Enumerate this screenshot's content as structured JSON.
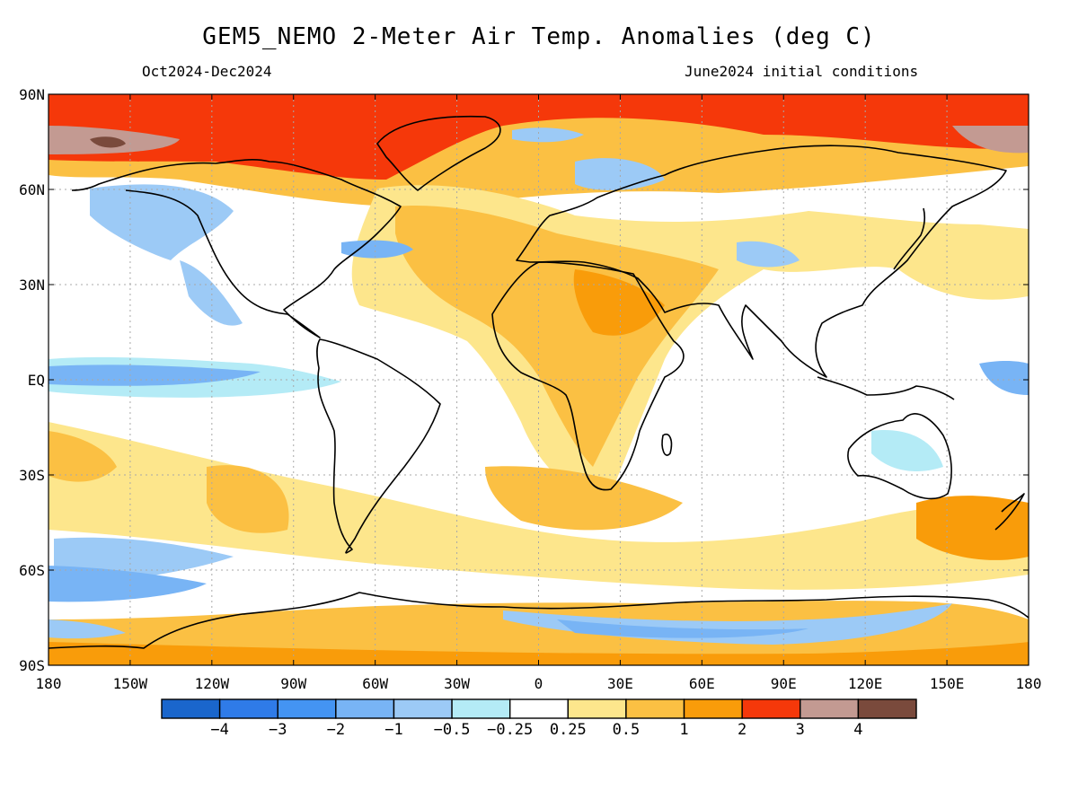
{
  "title": "GEM5_NEMO 2-Meter Air Temp. Anomalies (deg C)",
  "subtitle_left": "Oct2024-Dec2024",
  "subtitle_right": "June2024 initial conditions",
  "lat_ticks": [
    "90N",
    "60N",
    "30N",
    "EQ",
    "30S",
    "60S",
    "90S"
  ],
  "lon_ticks": [
    "180",
    "150W",
    "120W",
    "90W",
    "60W",
    "30W",
    "0",
    "30E",
    "60E",
    "90E",
    "120E",
    "150E",
    "180"
  ],
  "colorbar": {
    "colors": [
      "#1a66cc",
      "#2f7be8",
      "#4494f2",
      "#78b4f5",
      "#9ccaf6",
      "#b4ebf6",
      "#ffffff",
      "#fde68c",
      "#fbc043",
      "#f99c0a",
      "#f5380a",
      "#c39a92",
      "#7a4a3c"
    ],
    "labels": [
      "-4",
      "-3",
      "-2",
      "-1",
      "-0.5",
      "-0.25",
      "0.25",
      "0.5",
      "1",
      "2",
      "3",
      "4"
    ]
  },
  "colors": {
    "neutral": "#ffffff",
    "light_warm": "#fde68c",
    "warm": "#fbc043",
    "orange": "#f99c0a",
    "red": "#f5380a",
    "pink": "#c39a92",
    "brown": "#7a4a3c",
    "light_cool": "#b4ebf6",
    "cool": "#9ccaf6",
    "blue": "#78b4f5",
    "coastline": "#000000",
    "grid": "#b0b0b0"
  }
}
